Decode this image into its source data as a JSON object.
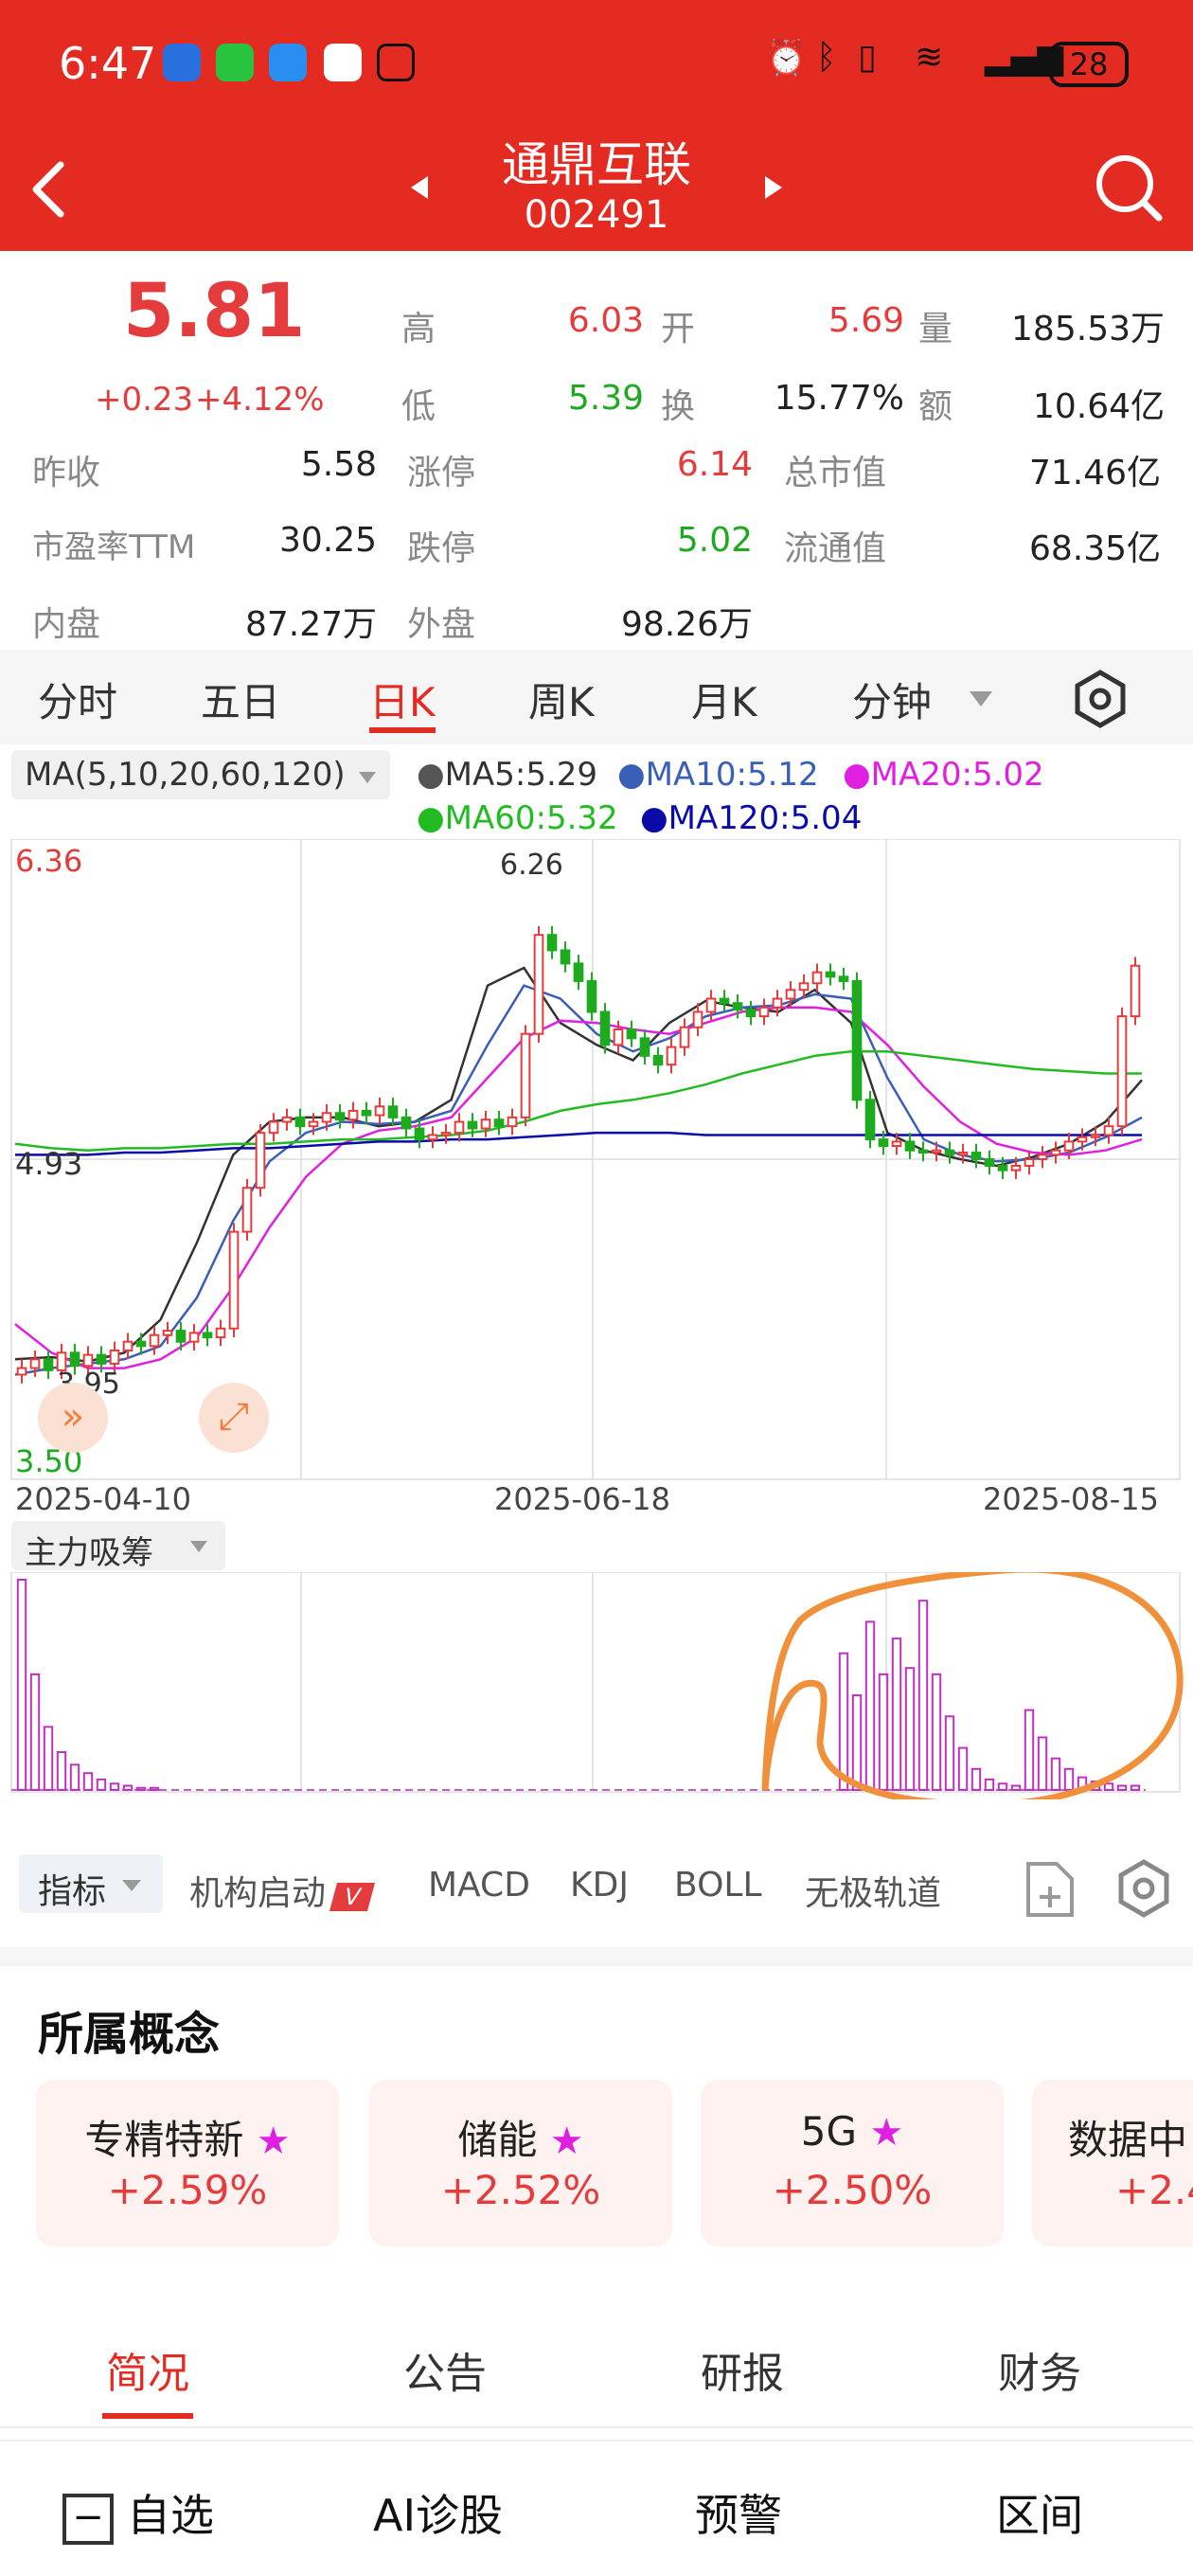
{
  "status_bar": {
    "time": "6:47",
    "battery": "28"
  },
  "header": {
    "name": "通鼎互联",
    "code": "002491"
  },
  "quote": {
    "price": "5.81",
    "change": "+0.23",
    "change_pct": "+4.12%",
    "rows": [
      {
        "l1": "高",
        "v1": "6.03",
        "l2": "开",
        "v2": "5.69",
        "l3": "量",
        "v3": "185.53万"
      },
      {
        "l1": "低",
        "v1": "5.39",
        "l2": "换",
        "v2": "15.77%",
        "l3": "额",
        "v3": "10.64亿"
      }
    ],
    "grid": [
      {
        "l1": "昨收",
        "v1": "5.58",
        "l2": "涨停",
        "v2": "6.14",
        "l3": "总市值",
        "v3": "71.46亿"
      },
      {
        "l1": "市盈率TTM",
        "v1": "30.25",
        "l2": "跌停",
        "v2": "5.02",
        "l3": "流通值",
        "v3": "68.35亿"
      },
      {
        "l1": "内盘",
        "v1": "87.27万",
        "l2": "外盘",
        "v2": "98.26万"
      }
    ]
  },
  "period_tabs": [
    "分时",
    "五日",
    "日K",
    "周K",
    "月K",
    "分钟"
  ],
  "ma_legend": {
    "selector": "MA(5,10,20,60,120)",
    "ma5": "MA5:5.29",
    "ma10": "MA10:5.12",
    "ma20": "MA20:5.02",
    "ma60": "MA60:5.32",
    "ma120": "MA120:5.04"
  },
  "colors": {
    "up": "#e43c3c",
    "down": "#1eaa1e",
    "ma5": "#333333",
    "ma10": "#3a5fb8",
    "ma20": "#e020e0",
    "ma60": "#22bb22",
    "ma120": "#0a0aa8",
    "annotation": "#f0903a"
  },
  "chart_data": {
    "type": "candlestick",
    "y_labels": {
      "top": "6.36",
      "mid": "4.93",
      "bottom": "3.50"
    },
    "ylim": [
      3.5,
      6.36
    ],
    "high_marker": "6.26",
    "low_marker": "3.95",
    "x_labels": [
      "2025-04-10",
      "2025-06-18",
      "2025-08-15"
    ],
    "closes": [
      3.98,
      4.02,
      3.97,
      4.05,
      3.99,
      4.04,
      4.0,
      4.06,
      4.1,
      4.08,
      4.13,
      4.15,
      4.1,
      4.14,
      4.12,
      4.16,
      4.6,
      4.8,
      5.05,
      5.1,
      5.12,
      5.08,
      5.1,
      5.14,
      5.11,
      5.15,
      5.13,
      5.17,
      5.12,
      5.07,
      5.02,
      5.04,
      5.05,
      5.1,
      5.07,
      5.11,
      5.08,
      5.12,
      5.5,
      5.95,
      5.88,
      5.82,
      5.74,
      5.6,
      5.45,
      5.52,
      5.48,
      5.4,
      5.36,
      5.44,
      5.53,
      5.6,
      5.66,
      5.64,
      5.61,
      5.58,
      5.62,
      5.66,
      5.7,
      5.73,
      5.78,
      5.76,
      5.74,
      5.2,
      5.02,
      4.99,
      5.01,
      4.97,
      4.96,
      4.97,
      4.95,
      4.96,
      4.93,
      4.9,
      4.88,
      4.9,
      4.93,
      4.95,
      4.97,
      5.01,
      5.03,
      5.04,
      5.08,
      5.58,
      5.81
    ],
    "ma": {
      "ma5": [
        4.02,
        4.03,
        4.01,
        4.05,
        4.2,
        4.55,
        4.95,
        5.1,
        5.12,
        5.12,
        5.08,
        5.1,
        5.2,
        5.72,
        5.8,
        5.55,
        5.45,
        5.38,
        5.55,
        5.65,
        5.62,
        5.6,
        5.7,
        5.55,
        5.05,
        4.97,
        4.93,
        4.9,
        4.94,
        5.0,
        5.1,
        5.29
      ],
      "ma10": [
        3.95,
        3.98,
        4.0,
        4.02,
        4.08,
        4.3,
        4.65,
        4.92,
        5.05,
        5.1,
        5.09,
        5.1,
        5.15,
        5.45,
        5.72,
        5.66,
        5.5,
        5.42,
        5.48,
        5.58,
        5.62,
        5.63,
        5.68,
        5.66,
        5.3,
        5.02,
        4.95,
        4.92,
        4.93,
        4.96,
        5.03,
        5.12
      ],
      "ma20": [
        4.18,
        4.05,
        3.98,
        3.98,
        4.02,
        4.12,
        4.35,
        4.62,
        4.85,
        5.0,
        5.06,
        5.08,
        5.12,
        5.3,
        5.48,
        5.56,
        5.55,
        5.52,
        5.5,
        5.55,
        5.6,
        5.62,
        5.62,
        5.6,
        5.45,
        5.26,
        5.1,
        5.0,
        4.96,
        4.95,
        4.97,
        5.02
      ],
      "ma60": [
        5.0,
        4.98,
        4.97,
        4.98,
        4.98,
        4.99,
        5.0,
        5.0,
        5.01,
        5.02,
        5.02,
        5.03,
        5.04,
        5.06,
        5.1,
        5.15,
        5.18,
        5.2,
        5.23,
        5.27,
        5.32,
        5.36,
        5.4,
        5.42,
        5.42,
        5.4,
        5.38,
        5.36,
        5.34,
        5.33,
        5.32,
        5.32
      ],
      "ma120": [
        4.95,
        4.95,
        4.95,
        4.96,
        4.96,
        4.97,
        4.98,
        4.98,
        4.99,
        5.0,
        5.01,
        5.01,
        5.02,
        5.02,
        5.03,
        5.04,
        5.05,
        5.05,
        5.05,
        5.04,
        5.04,
        5.04,
        5.04,
        5.04,
        5.04,
        5.04,
        5.04,
        5.04,
        5.04,
        5.04,
        5.04,
        5.04
      ]
    }
  },
  "sub_indicator": {
    "name": "主力吸筹",
    "bars": [
      1.0,
      0.55,
      0.3,
      0.18,
      0.12,
      0.08,
      0.05,
      0.03,
      0.02,
      0.01,
      0.01,
      0,
      0,
      0,
      0,
      0,
      0,
      0,
      0,
      0,
      0,
      0,
      0,
      0,
      0,
      0,
      0,
      0,
      0,
      0,
      0,
      0,
      0,
      0,
      0,
      0,
      0,
      0,
      0,
      0,
      0,
      0,
      0,
      0,
      0,
      0,
      0,
      0,
      0,
      0,
      0,
      0,
      0,
      0,
      0,
      0,
      0,
      0,
      0,
      0,
      0,
      0,
      0.65,
      0.45,
      0.8,
      0.55,
      0.72,
      0.58,
      0.9,
      0.55,
      0.35,
      0.2,
      0.1,
      0.05,
      0.03,
      0.02,
      0.38,
      0.25,
      0.15,
      0.1,
      0.06,
      0.04,
      0.03,
      0.02,
      0.02
    ]
  },
  "indicator_bar": {
    "selector": "指标",
    "items": [
      "机构启动",
      "MACD",
      "KDJ",
      "BOLL",
      "无极轨道"
    ]
  },
  "concepts": {
    "title": "所属概念",
    "items": [
      {
        "name": "专精特新",
        "pct": "+2.59%"
      },
      {
        "name": "储能",
        "pct": "+2.52%"
      },
      {
        "name": "5G",
        "pct": "+2.50%"
      },
      {
        "name": "数据中",
        "pct": "+2.4"
      }
    ]
  },
  "bottom_tabs": [
    "简况",
    "公告",
    "研报",
    "财务"
  ],
  "bottom_nav": {
    "watch": "自选",
    "ai": "AI诊股",
    "alert": "预警",
    "range": "区间"
  }
}
